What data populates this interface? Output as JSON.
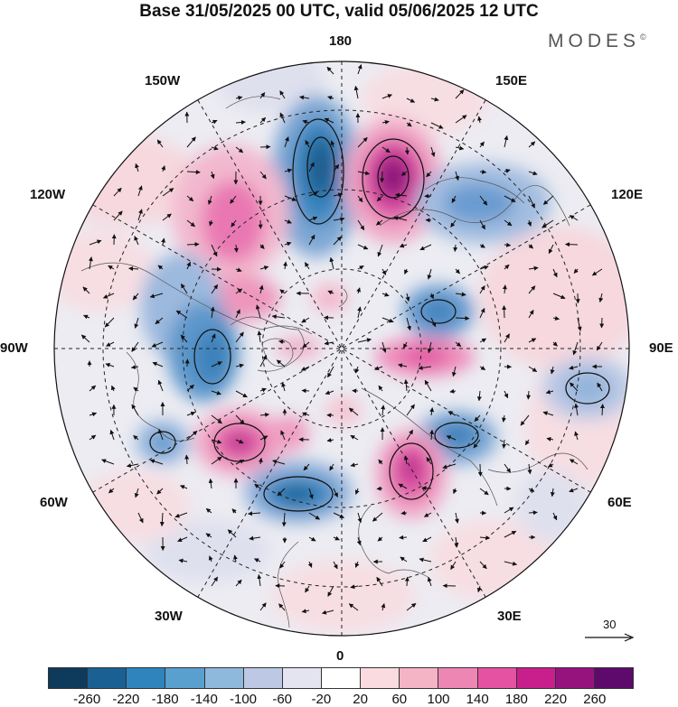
{
  "title": "Base 31/05/2025 00 UTC, valid 05/06/2025 12 UTC",
  "brand": "MODES",
  "brand_mark": "©",
  "longitude_labels": {
    "n": "180",
    "s": "0",
    "w": "90W",
    "e": "90E",
    "nw1": "150W",
    "ne1": "150E",
    "nw2": "120W",
    "ne2": "120E",
    "sw1": "60W",
    "se1": "60E",
    "sw2": "30W",
    "se2": "30E"
  },
  "reference_vector": "30",
  "colorbar": {
    "colors": [
      "#0e3a5c",
      "#1a6093",
      "#2f84bd",
      "#5aa0cf",
      "#8eb8dc",
      "#bcc8e4",
      "#e4e4f0",
      "#ffffff",
      "#fadbe0",
      "#f4b4c6",
      "#ee86b4",
      "#e552a2",
      "#c91f8c",
      "#96137e",
      "#5e0a6c"
    ],
    "ticks": [
      "-260",
      "-220",
      "-180",
      "-140",
      "-100",
      "-60",
      "-20",
      "20",
      "60",
      "100",
      "140",
      "180",
      "220",
      "260"
    ]
  }
}
